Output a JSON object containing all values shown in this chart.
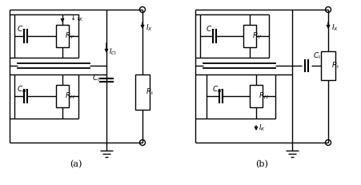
{
  "fig_width": 4.51,
  "fig_height": 2.31,
  "dpi": 100,
  "bg_color": "#ffffff",
  "line_color": "#000000",
  "lw": 1.0
}
